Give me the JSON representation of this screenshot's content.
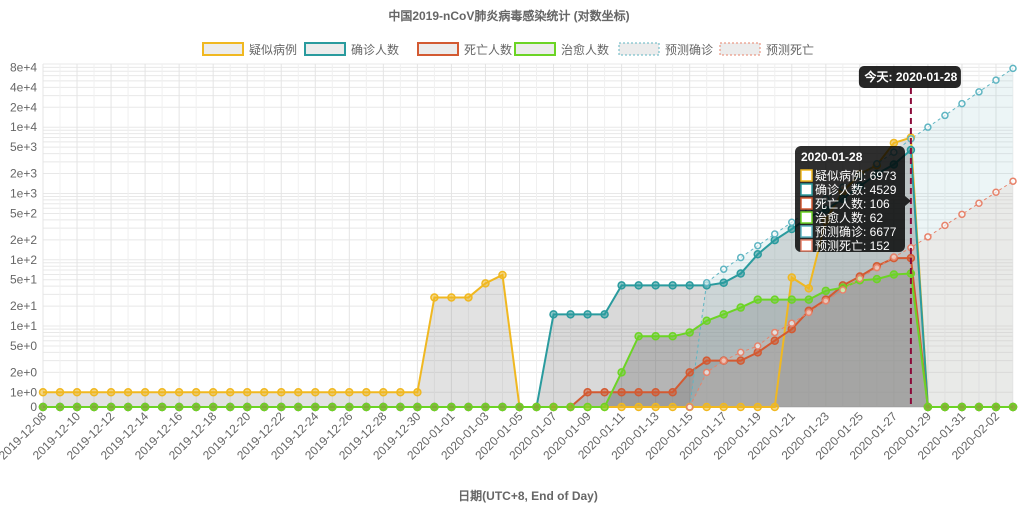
{
  "chart_data": {
    "type": "line",
    "title": "中国2019-nCoV肺炎病毒感染统计 (对数坐标)",
    "xlabel": "日期(UTC+8, End of Day)",
    "ylabel": "",
    "y_scale": "log",
    "y_ticks": [
      "0",
      "1e+0",
      "2e+0",
      "5e+0",
      "1e+1",
      "2e+1",
      "5e+1",
      "1e+2",
      "2e+2",
      "5e+2",
      "1e+3",
      "2e+3",
      "5e+3",
      "1e+4",
      "2e+4",
      "4e+4",
      "8e+4"
    ],
    "x_tick_labels": [
      "2019-12-08",
      "2019-12-10",
      "2019-12-12",
      "2019-12-14",
      "2019-12-16",
      "2019-12-18",
      "2019-12-20",
      "2019-12-22",
      "2019-12-24",
      "2019-12-26",
      "2019-12-28",
      "2019-12-30",
      "2020-01-01",
      "2020-01-03",
      "2020-01-05",
      "2020-01-07",
      "2020-01-09",
      "2020-01-11",
      "2020-01-13",
      "2020-01-15",
      "2020-01-17",
      "2020-01-19",
      "2020-01-21",
      "2020-01-23",
      "2020-01-25",
      "2020-01-27",
      "2020-01-29",
      "2020-01-31",
      "2020-02-02"
    ],
    "x": [
      "2019-12-08",
      "2019-12-09",
      "2019-12-10",
      "2019-12-11",
      "2019-12-12",
      "2019-12-13",
      "2019-12-14",
      "2019-12-15",
      "2019-12-16",
      "2019-12-17",
      "2019-12-18",
      "2019-12-19",
      "2019-12-20",
      "2019-12-21",
      "2019-12-22",
      "2019-12-23",
      "2019-12-24",
      "2019-12-25",
      "2019-12-26",
      "2019-12-27",
      "2019-12-28",
      "2019-12-29",
      "2019-12-30",
      "2019-12-31",
      "2020-01-01",
      "2020-01-02",
      "2020-01-03",
      "2020-01-04",
      "2020-01-05",
      "2020-01-06",
      "2020-01-07",
      "2020-01-08",
      "2020-01-09",
      "2020-01-10",
      "2020-01-11",
      "2020-01-12",
      "2020-01-13",
      "2020-01-14",
      "2020-01-15",
      "2020-01-16",
      "2020-01-17",
      "2020-01-18",
      "2020-01-19",
      "2020-01-20",
      "2020-01-21",
      "2020-01-22",
      "2020-01-23",
      "2020-01-24",
      "2020-01-25",
      "2020-01-26",
      "2020-01-27",
      "2020-01-28",
      "2020-01-29",
      "2020-01-30",
      "2020-01-31",
      "2020-02-01",
      "2020-02-02",
      "2020-02-03"
    ],
    "today_label": "今天: 2020-01-28",
    "today_index": 51,
    "series": [
      {
        "name": "疑似病例",
        "color": "#f0b821",
        "fill": "rgba(140,140,140,0.25)",
        "style": "solid",
        "values": [
          1,
          1,
          1,
          1,
          1,
          1,
          1,
          1,
          1,
          1,
          1,
          1,
          1,
          1,
          1,
          1,
          1,
          1,
          1,
          1,
          1,
          1,
          1,
          27,
          27,
          27,
          44,
          59,
          0,
          0,
          0,
          0,
          0,
          0,
          0,
          0,
          0,
          0,
          0,
          0,
          0,
          0,
          0,
          0,
          54,
          37,
          393,
          1072,
          1965,
          2684,
          5794,
          6973,
          0,
          0,
          0,
          0,
          0,
          0
        ]
      },
      {
        "name": "确诊人数",
        "color": "#2a9b9e",
        "fill": "rgba(120,120,120,0.28)",
        "style": "solid",
        "values": [
          0,
          0,
          0,
          0,
          0,
          0,
          0,
          0,
          0,
          0,
          0,
          0,
          0,
          0,
          0,
          0,
          0,
          0,
          0,
          0,
          0,
          0,
          0,
          0,
          0,
          0,
          0,
          0,
          0,
          0,
          15,
          15,
          15,
          15,
          41,
          41,
          41,
          41,
          41,
          41,
          45,
          62,
          121,
          198,
          291,
          440,
          571,
          830,
          1287,
          1975,
          2744,
          4529,
          0,
          0,
          0,
          0,
          0,
          0
        ]
      },
      {
        "name": "死亡人数",
        "color": "#d35a32",
        "fill": "rgba(110,110,110,0.3)",
        "style": "solid",
        "values": [
          0,
          0,
          0,
          0,
          0,
          0,
          0,
          0,
          0,
          0,
          0,
          0,
          0,
          0,
          0,
          0,
          0,
          0,
          0,
          0,
          0,
          0,
          0,
          0,
          0,
          0,
          0,
          0,
          0,
          0,
          0,
          0,
          1,
          1,
          1,
          1,
          1,
          1,
          2,
          3,
          3,
          3,
          4,
          6,
          9,
          17,
          25,
          41,
          56,
          80,
          106,
          106,
          0,
          0,
          0,
          0,
          0,
          0
        ]
      },
      {
        "name": "治愈人数",
        "color": "#6cd425",
        "fill": "rgba(100,100,100,0.3)",
        "style": "solid",
        "values": [
          0,
          0,
          0,
          0,
          0,
          0,
          0,
          0,
          0,
          0,
          0,
          0,
          0,
          0,
          0,
          0,
          0,
          0,
          0,
          0,
          0,
          0,
          0,
          0,
          0,
          0,
          0,
          0,
          0,
          0,
          0,
          0,
          0,
          0,
          2,
          7,
          7,
          7,
          8,
          12,
          15,
          19,
          25,
          25,
          25,
          25,
          34,
          38,
          49,
          51,
          60,
          62,
          0,
          0,
          0,
          0,
          0,
          0
        ]
      },
      {
        "name": "预测确诊",
        "color": "#5fb5c2",
        "fill": "rgba(160,205,210,0.2)",
        "style": "dashed",
        "values": [
          null,
          null,
          null,
          null,
          null,
          null,
          null,
          null,
          null,
          null,
          null,
          null,
          null,
          null,
          null,
          null,
          null,
          null,
          null,
          null,
          null,
          null,
          null,
          null,
          null,
          null,
          null,
          null,
          null,
          null,
          null,
          null,
          null,
          null,
          null,
          null,
          null,
          null,
          0,
          45,
          72,
          108,
          163,
          245,
          368,
          552,
          829,
          1245,
          1870,
          2808,
          4200,
          6677,
          10025,
          15080,
          22700,
          34200,
          51400,
          77300
        ]
      },
      {
        "name": "预测死亡",
        "color": "#e7836b",
        "fill": "rgba(225,190,180,0.2)",
        "style": "dashed",
        "values": [
          null,
          null,
          null,
          null,
          null,
          null,
          null,
          null,
          null,
          null,
          null,
          null,
          null,
          null,
          null,
          null,
          null,
          null,
          null,
          null,
          null,
          null,
          null,
          null,
          null,
          null,
          null,
          null,
          null,
          null,
          null,
          null,
          null,
          null,
          null,
          null,
          null,
          null,
          0,
          2,
          3,
          4,
          5,
          8,
          11,
          16,
          24,
          35,
          52,
          76,
          110,
          152,
          222,
          330,
          485,
          712,
          1045,
          1533
        ]
      }
    ],
    "tooltip": {
      "title": "2020-01-28",
      "rows": [
        {
          "label": "疑似病例: 6973",
          "color": "#f0b821"
        },
        {
          "label": "确诊人数: 4529",
          "color": "#2a9b9e"
        },
        {
          "label": "死亡人数: 106",
          "color": "#d35a32"
        },
        {
          "label": "治愈人数: 62",
          "color": "#6cd425"
        },
        {
          "label": "预测确诊: 6677",
          "color": "#5fb5c2"
        },
        {
          "label": "预测死亡: 152",
          "color": "#e7836b"
        }
      ]
    },
    "legend": "top-center",
    "grid": true
  }
}
